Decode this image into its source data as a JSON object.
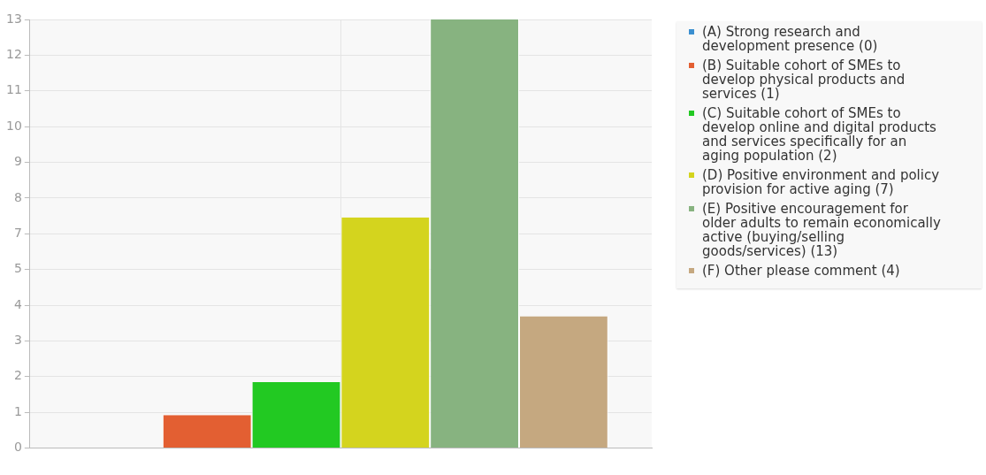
{
  "chart_data": {
    "type": "bar",
    "categories": [
      null
    ],
    "series": [
      {
        "name": "(A) Strong research and development presence (0)",
        "color": "#3b8fd0",
        "values": [
          0
        ]
      },
      {
        "name": "(B) Suitable cohort of SMEs to develop physical products and services (1)",
        "color": "#e35f32",
        "values": [
          1
        ]
      },
      {
        "name": "(C) Suitable cohort of SMEs to develop online and digital products and services specifically for an aging population (2)",
        "color": "#22c922",
        "values": [
          2
        ]
      },
      {
        "name": "(D) Positive environment and policy provision for active aging (7)",
        "color": "#d4d41e",
        "values": [
          7
        ]
      },
      {
        "name": "(E) Positive encouragement for older adults to remain economically active (buying/selling goods/services) (13)",
        "color": "#87b380",
        "values": [
          13
        ]
      },
      {
        "name": "(F) Other please comment (4)",
        "color": "#c5a880",
        "values": [
          4
        ]
      }
    ],
    "ylim": [
      0,
      13
    ],
    "yticks": [
      0,
      {
        "value": 1.0833,
        "label": "1"
      },
      {
        "value": 2.1667,
        "label": "2"
      },
      {
        "value": 3.25,
        "label": "3"
      },
      {
        "value": 4.3333,
        "label": "4"
      },
      {
        "value": 5.4167,
        "label": "5"
      },
      {
        "value": 6.5,
        "label": "7"
      },
      {
        "value": 7.5833,
        "label": "8"
      },
      {
        "value": 8.6667,
        "label": "9"
      },
      {
        "value": 9.75,
        "label": "10"
      },
      {
        "value": 10.8333,
        "label": "11"
      },
      {
        "value": 11.9167,
        "label": "12"
      },
      13
    ],
    "grid": true,
    "legend": "right"
  }
}
